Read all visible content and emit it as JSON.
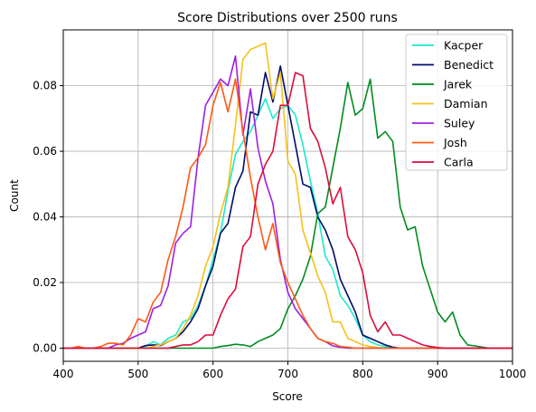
{
  "chart_data": {
    "type": "line",
    "title": "Score Distributions over 2500 runs",
    "xlabel": "Score",
    "ylabel": "Count",
    "xlim": [
      400,
      1000
    ],
    "ylim": [
      -0.004,
      0.097
    ],
    "xticks": [
      400,
      500,
      600,
      700,
      800,
      900,
      1000
    ],
    "xtick_labels": [
      "400",
      "500",
      "600",
      "700",
      "800",
      "900",
      "1000"
    ],
    "yticks": [
      0.0,
      0.02,
      0.04,
      0.06,
      0.08
    ],
    "ytick_labels": [
      "0.00",
      "0.02",
      "0.04",
      "0.06",
      "0.08"
    ],
    "grid": true,
    "legend_position": "top-right",
    "series": [
      {
        "name": "Kacper",
        "color": "#1de9c9",
        "x": [
          400,
          410,
          420,
          430,
          440,
          450,
          460,
          470,
          480,
          490,
          500,
          510,
          520,
          530,
          540,
          550,
          560,
          570,
          580,
          590,
          600,
          610,
          620,
          630,
          640,
          650,
          660,
          670,
          680,
          690,
          700,
          710,
          720,
          730,
          740,
          750,
          760,
          770,
          780,
          790,
          800,
          810,
          820,
          830,
          840,
          850,
          860,
          870,
          880,
          890,
          900,
          910,
          920,
          930,
          940,
          950,
          960,
          970,
          980,
          990,
          1000
        ],
        "y": [
          0,
          0,
          0,
          0,
          0,
          0,
          0,
          0,
          0,
          0,
          0,
          0.0005,
          0.002,
          0.001,
          0.003,
          0.004,
          0.008,
          0.009,
          0.013,
          0.019,
          0.027,
          0.035,
          0.048,
          0.059,
          0.063,
          0.066,
          0.071,
          0.076,
          0.07,
          0.073,
          0.074,
          0.071,
          0.062,
          0.051,
          0.041,
          0.028,
          0.024,
          0.016,
          0.013,
          0.009,
          0.004,
          0.002,
          0.001,
          0.0005,
          0.0002,
          0,
          0,
          0,
          0,
          0,
          0,
          0,
          0,
          0,
          0,
          0,
          0,
          0,
          0,
          0,
          0
        ]
      },
      {
        "name": "Benedict",
        "color": "#000c6b",
        "x": [
          400,
          410,
          420,
          430,
          440,
          450,
          460,
          470,
          480,
          490,
          500,
          510,
          520,
          530,
          540,
          550,
          560,
          570,
          580,
          590,
          600,
          610,
          620,
          630,
          640,
          650,
          660,
          670,
          680,
          690,
          700,
          710,
          720,
          730,
          740,
          750,
          760,
          770,
          780,
          790,
          800,
          810,
          820,
          830,
          840,
          850,
          860,
          870,
          880,
          890,
          900,
          910,
          920,
          930,
          940,
          950,
          960,
          970,
          980,
          990,
          1000
        ],
        "y": [
          0,
          0,
          0,
          0,
          0,
          0,
          0,
          0,
          0,
          0,
          0,
          0.0008,
          0.001,
          0.0008,
          0.002,
          0.003,
          0.005,
          0.008,
          0.012,
          0.019,
          0.025,
          0.035,
          0.038,
          0.049,
          0.054,
          0.072,
          0.071,
          0.084,
          0.075,
          0.086,
          0.074,
          0.062,
          0.05,
          0.049,
          0.04,
          0.036,
          0.03,
          0.021,
          0.016,
          0.011,
          0.004,
          0.003,
          0.002,
          0.001,
          0.0003,
          0,
          0,
          0,
          0,
          0,
          0,
          0,
          0,
          0,
          0,
          0,
          0,
          0,
          0,
          0,
          0
        ]
      },
      {
        "name": "Jarek",
        "color": "#008c1e",
        "x": [
          400,
          410,
          420,
          430,
          440,
          450,
          460,
          470,
          480,
          490,
          500,
          510,
          520,
          530,
          540,
          550,
          560,
          570,
          580,
          590,
          600,
          610,
          620,
          630,
          640,
          650,
          660,
          670,
          680,
          690,
          700,
          710,
          720,
          730,
          740,
          750,
          760,
          770,
          780,
          790,
          800,
          810,
          820,
          830,
          840,
          850,
          860,
          870,
          880,
          890,
          900,
          910,
          920,
          930,
          940,
          950,
          960,
          970,
          980,
          990,
          1000
        ],
        "y": [
          0,
          0,
          0,
          0,
          0,
          0,
          0,
          0,
          0,
          0,
          0,
          0,
          0,
          0,
          0,
          0,
          0,
          0,
          0,
          0,
          0,
          0.0005,
          0.0008,
          0.0012,
          0.001,
          0.0005,
          0.002,
          0.003,
          0.004,
          0.006,
          0.012,
          0.016,
          0.021,
          0.028,
          0.041,
          0.043,
          0.055,
          0.067,
          0.081,
          0.071,
          0.073,
          0.082,
          0.064,
          0.066,
          0.063,
          0.043,
          0.036,
          0.037,
          0.025,
          0.018,
          0.011,
          0.008,
          0.011,
          0.004,
          0.001,
          0.0007,
          0.0003,
          0,
          0,
          0,
          0
        ]
      },
      {
        "name": "Damian",
        "color": "#f5c01a",
        "x": [
          400,
          410,
          420,
          430,
          440,
          450,
          460,
          470,
          480,
          490,
          500,
          510,
          520,
          530,
          540,
          550,
          560,
          570,
          580,
          590,
          600,
          610,
          620,
          630,
          640,
          650,
          660,
          670,
          680,
          690,
          700,
          710,
          720,
          730,
          740,
          750,
          760,
          770,
          780,
          790,
          800,
          810,
          820,
          830,
          840,
          850,
          860,
          870,
          880,
          890,
          900,
          910,
          920,
          930,
          940,
          950,
          960,
          970,
          980,
          990,
          1000
        ],
        "y": [
          0,
          0,
          0,
          0,
          0,
          0,
          0,
          0,
          0,
          0,
          0,
          0,
          0.0005,
          0.001,
          0.002,
          0.003,
          0.006,
          0.01,
          0.016,
          0.025,
          0.031,
          0.041,
          0.049,
          0.068,
          0.088,
          0.091,
          0.092,
          0.093,
          0.076,
          0.084,
          0.057,
          0.053,
          0.036,
          0.029,
          0.022,
          0.017,
          0.008,
          0.008,
          0.003,
          0.002,
          0.001,
          0.0005,
          0.0002,
          0,
          0,
          0,
          0,
          0,
          0,
          0,
          0,
          0,
          0,
          0,
          0,
          0,
          0,
          0,
          0,
          0,
          0
        ]
      },
      {
        "name": "Suley",
        "color": "#9b20e4",
        "x": [
          400,
          410,
          420,
          430,
          440,
          450,
          460,
          470,
          480,
          490,
          500,
          510,
          520,
          530,
          540,
          550,
          560,
          570,
          580,
          590,
          600,
          610,
          620,
          630,
          640,
          650,
          660,
          670,
          680,
          690,
          700,
          710,
          720,
          730,
          740,
          750,
          760,
          770,
          780,
          790,
          800,
          810,
          820,
          830,
          840,
          850,
          860,
          870,
          880,
          890,
          900,
          910,
          920,
          930,
          940,
          950,
          960,
          970,
          980,
          990,
          1000
        ],
        "y": [
          0,
          0,
          0,
          0,
          0,
          0,
          0,
          0.001,
          0.0015,
          0.003,
          0.004,
          0.005,
          0.012,
          0.013,
          0.019,
          0.032,
          0.035,
          0.037,
          0.058,
          0.074,
          0.078,
          0.082,
          0.08,
          0.089,
          0.065,
          0.079,
          0.061,
          0.051,
          0.044,
          0.027,
          0.017,
          0.012,
          0.009,
          0.006,
          0.003,
          0.002,
          0.0007,
          0.0003,
          0,
          0,
          0,
          0,
          0,
          0,
          0,
          0,
          0,
          0,
          0,
          0,
          0,
          0,
          0,
          0,
          0,
          0,
          0,
          0,
          0,
          0,
          0
        ]
      },
      {
        "name": "Josh",
        "color": "#fa5a14",
        "x": [
          400,
          410,
          420,
          430,
          440,
          450,
          460,
          470,
          480,
          490,
          500,
          510,
          520,
          530,
          540,
          550,
          560,
          570,
          580,
          590,
          600,
          610,
          620,
          630,
          640,
          650,
          660,
          670,
          680,
          690,
          700,
          710,
          720,
          730,
          740,
          750,
          760,
          770,
          780,
          790,
          800,
          810,
          820,
          830,
          840,
          850,
          860,
          870,
          880,
          890,
          900,
          910,
          920,
          930,
          940,
          950,
          960,
          970,
          980,
          990,
          1000
        ],
        "y": [
          0,
          0,
          0.0005,
          0,
          0,
          0.0005,
          0.0015,
          0.0015,
          0.001,
          0.004,
          0.009,
          0.008,
          0.014,
          0.017,
          0.027,
          0.034,
          0.043,
          0.055,
          0.058,
          0.062,
          0.074,
          0.081,
          0.072,
          0.082,
          0.066,
          0.052,
          0.04,
          0.03,
          0.038,
          0.026,
          0.02,
          0.015,
          0.01,
          0.006,
          0.003,
          0.002,
          0.0015,
          0.0005,
          0.0003,
          0,
          0,
          0,
          0,
          0,
          0,
          0,
          0,
          0,
          0,
          0,
          0,
          0,
          0,
          0,
          0,
          0,
          0,
          0,
          0,
          0,
          0
        ]
      },
      {
        "name": "Carla",
        "color": "#dc0c3c",
        "x": [
          400,
          410,
          420,
          430,
          440,
          450,
          460,
          470,
          480,
          490,
          500,
          510,
          520,
          530,
          540,
          550,
          560,
          570,
          580,
          590,
          600,
          610,
          620,
          630,
          640,
          650,
          660,
          670,
          680,
          690,
          700,
          710,
          720,
          730,
          740,
          750,
          760,
          770,
          780,
          790,
          800,
          810,
          820,
          830,
          840,
          850,
          860,
          870,
          880,
          890,
          900,
          910,
          920,
          930,
          940,
          950,
          960,
          970,
          980,
          990,
          1000
        ],
        "y": [
          0,
          0,
          0,
          0,
          0,
          0,
          0,
          0,
          0,
          0,
          0,
          0,
          0,
          0,
          0,
          0.0005,
          0.001,
          0.001,
          0.002,
          0.004,
          0.004,
          0.01,
          0.015,
          0.018,
          0.031,
          0.034,
          0.05,
          0.056,
          0.06,
          0.074,
          0.074,
          0.084,
          0.083,
          0.067,
          0.063,
          0.055,
          0.044,
          0.049,
          0.034,
          0.03,
          0.023,
          0.01,
          0.005,
          0.008,
          0.004,
          0.004,
          0.003,
          0.002,
          0.001,
          0.0005,
          0.0002,
          0,
          0,
          0,
          0,
          0,
          0,
          0,
          0,
          0,
          0
        ]
      }
    ]
  }
}
